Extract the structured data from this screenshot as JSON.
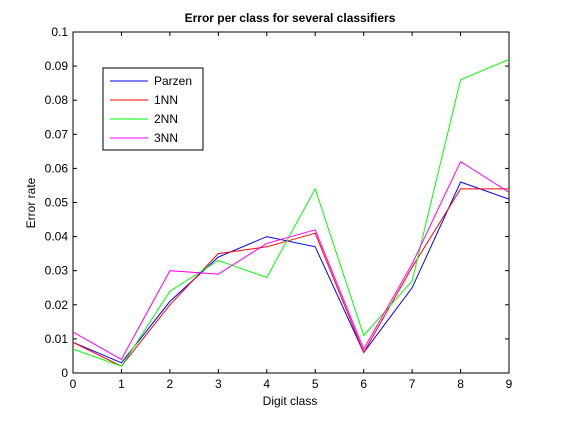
{
  "chart_data": {
    "type": "line",
    "title": "Error per class for several classifiers",
    "xlabel": "Digit class",
    "ylabel": "Error rate",
    "xlim": [
      0,
      9
    ],
    "ylim": [
      0,
      0.1
    ],
    "x": [
      0,
      1,
      2,
      3,
      4,
      5,
      6,
      7,
      8,
      9
    ],
    "xticks": [
      "0",
      "1",
      "2",
      "3",
      "4",
      "5",
      "6",
      "7",
      "8",
      "9"
    ],
    "yticks": [
      "0",
      "0.01",
      "0.02",
      "0.03",
      "0.04",
      "0.05",
      "0.06",
      "0.07",
      "0.08",
      "0.09",
      "0.1"
    ],
    "ytick_values": [
      0,
      0.01,
      0.02,
      0.03,
      0.04,
      0.05,
      0.06,
      0.07,
      0.08,
      0.09,
      0.1
    ],
    "grid": false,
    "legend_position": "top-left",
    "series": [
      {
        "name": "Parzen",
        "color": "#0000ff",
        "values": [
          0.009,
          0.003,
          0.021,
          0.034,
          0.04,
          0.037,
          0.006,
          0.025,
          0.056,
          0.051
        ]
      },
      {
        "name": "1NN",
        "color": "#ff0000",
        "values": [
          0.009,
          0.002,
          0.02,
          0.035,
          0.037,
          0.041,
          0.006,
          0.031,
          0.054,
          0.054
        ]
      },
      {
        "name": "2NN",
        "color": "#00ff00",
        "values": [
          0.007,
          0.002,
          0.024,
          0.033,
          0.028,
          0.054,
          0.011,
          0.027,
          0.086,
          0.092
        ]
      },
      {
        "name": "3NN",
        "color": "#ff00ff",
        "values": [
          0.012,
          0.004,
          0.03,
          0.029,
          0.038,
          0.042,
          0.007,
          0.032,
          0.062,
          0.053
        ]
      }
    ]
  }
}
